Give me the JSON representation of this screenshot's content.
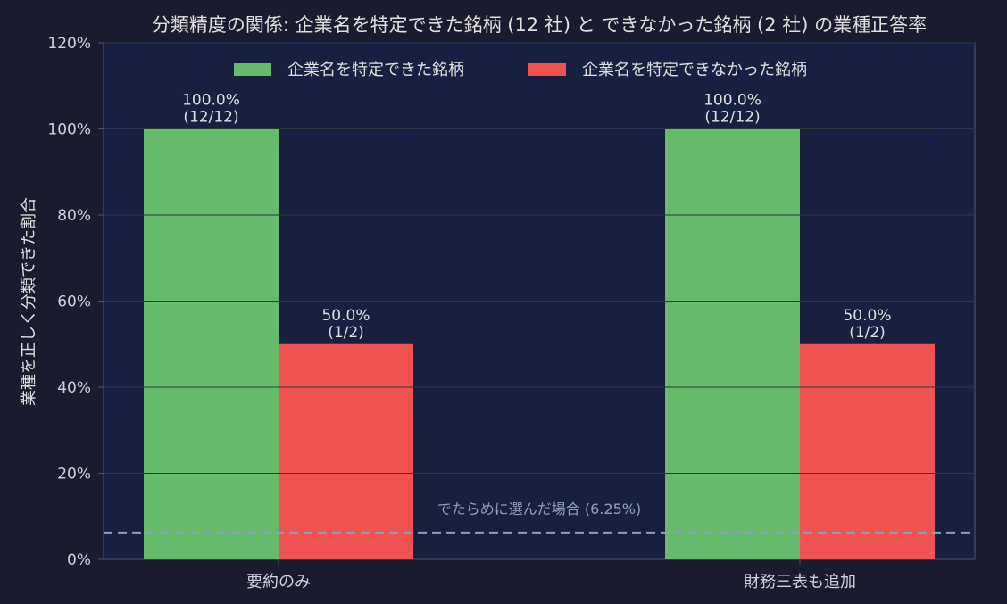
{
  "chart_data": {
    "type": "bar",
    "title": "分類精度の関係: 企業名を特定できた銘柄 (12 社) と できなかった銘柄 (2 社) の業種正答率",
    "xlabel": "",
    "ylabel": "業種を正しく分類できた割合",
    "categories": [
      "要約のみ",
      "財務三表も追加"
    ],
    "series": [
      {
        "name": "企業名を特定できた銘柄",
        "color": "#66bb6a",
        "values": [
          100.0,
          100.0
        ],
        "labels": [
          [
            "100.0%",
            "(12/12)"
          ],
          [
            "100.0%",
            "(12/12)"
          ]
        ]
      },
      {
        "name": "企業名を特定できなかった銘柄",
        "color": "#ef5350",
        "values": [
          50.0,
          50.0
        ],
        "labels": [
          [
            "50.0%",
            "(1/2)"
          ],
          [
            "50.0%",
            "(1/2)"
          ]
        ]
      }
    ],
    "ylim": [
      0,
      120
    ],
    "yticks": [
      0,
      20,
      40,
      60,
      80,
      100,
      120
    ],
    "ytick_labels": [
      "0%",
      "20%",
      "40%",
      "60%",
      "80%",
      "100%",
      "120%"
    ],
    "reference_line": {
      "value": 6.25,
      "label": "でたらめに選んだ場合 (6.25%)",
      "color": "#8fa0b8"
    },
    "grid": true,
    "legend_position": "top-center",
    "colors": {
      "background": "#1b1b2f",
      "plot_background": "#172040",
      "text": "#e0e0e0",
      "tick_text": "#cfd3dc",
      "axis": "#4a5573"
    }
  }
}
